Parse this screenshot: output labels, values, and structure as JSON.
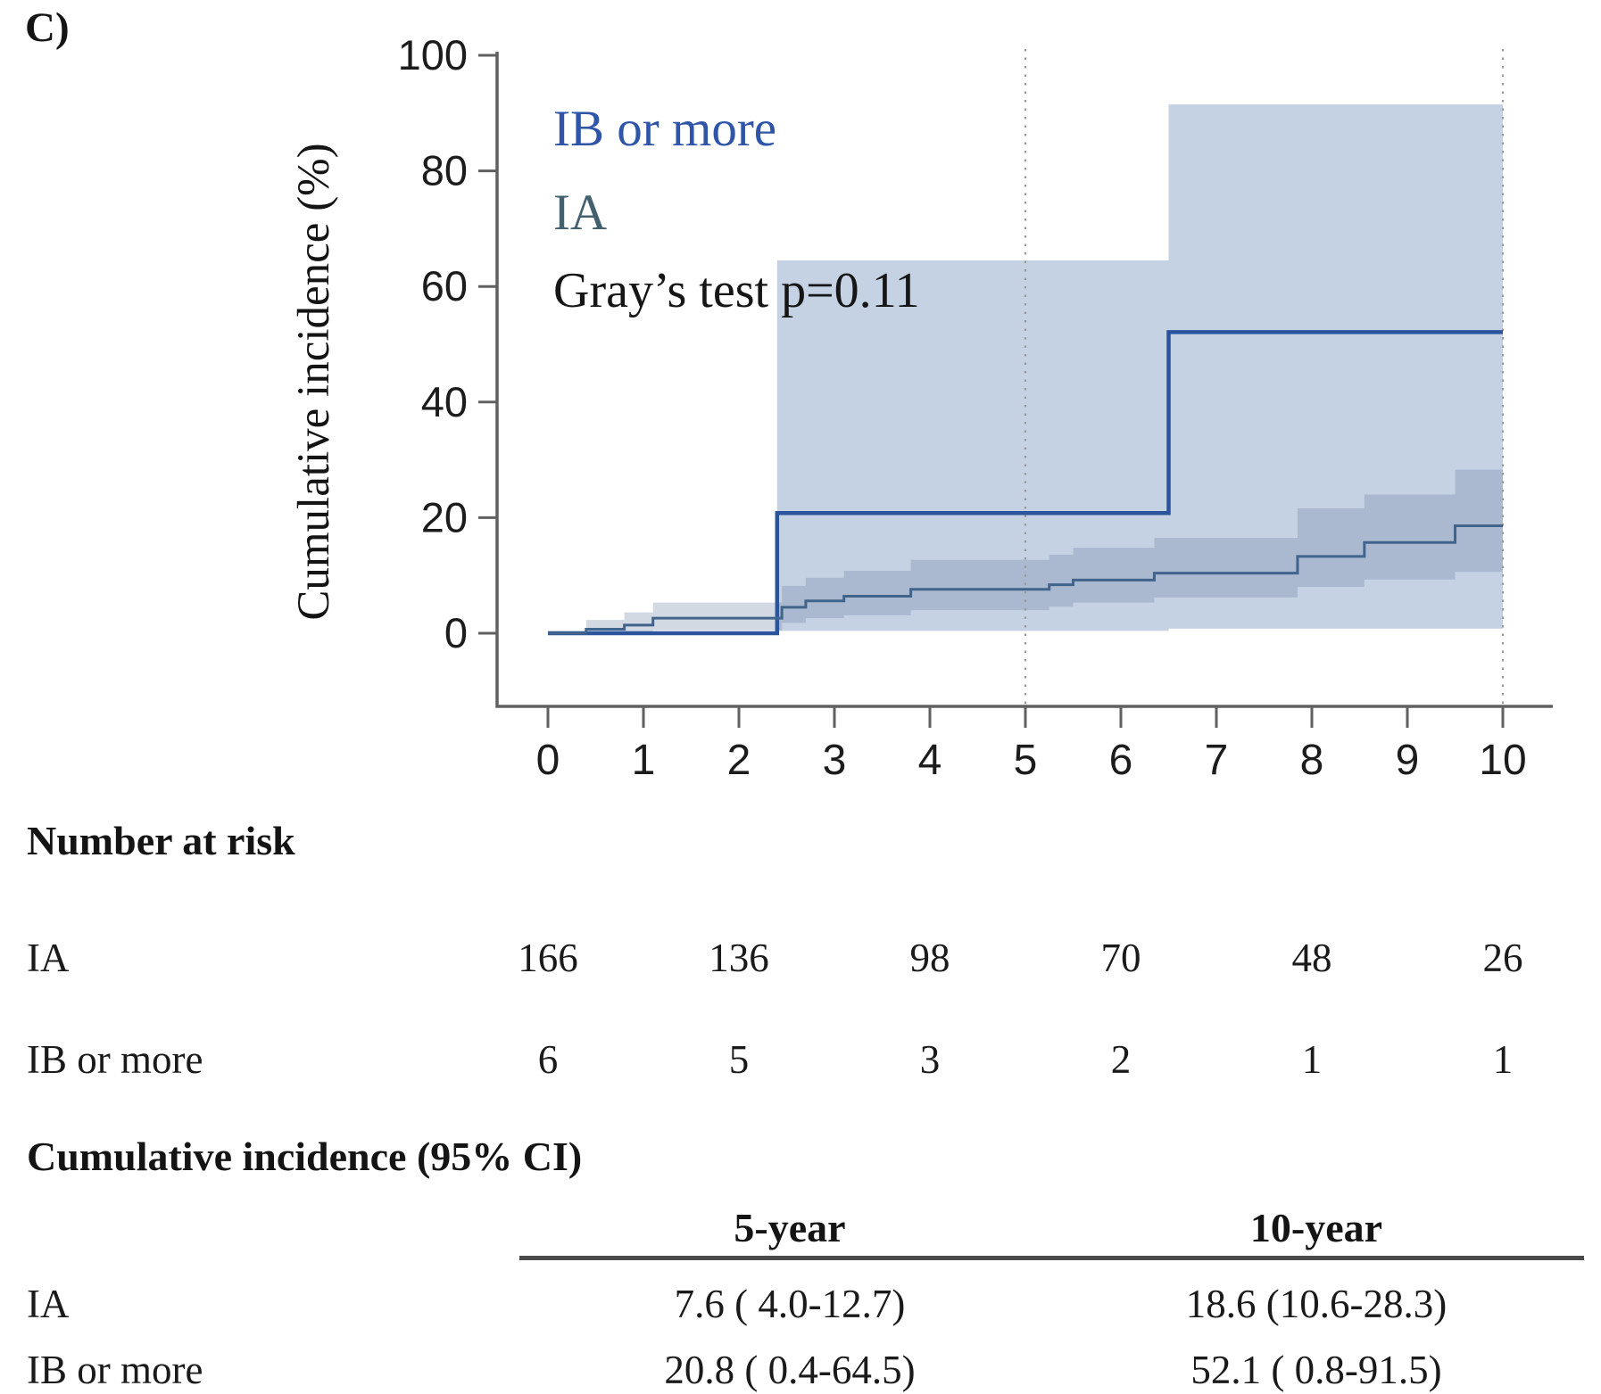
{
  "panel_label": "C)",
  "chart_data": {
    "type": "line",
    "subtype": "cumulative-incidence-step",
    "title": "",
    "xlabel": "",
    "ylabel": "Cumulative incidence (%)",
    "xlim": [
      0,
      10
    ],
    "ylim": [
      0,
      100
    ],
    "x_ticks": [
      0,
      1,
      2,
      3,
      4,
      5,
      6,
      7,
      8,
      9,
      10
    ],
    "y_ticks": [
      0,
      20,
      40,
      60,
      80,
      100
    ],
    "grid": false,
    "reference_lines_x": [
      5,
      10
    ],
    "annotation": "Gray’s test p=0.11",
    "legend_position": "top-left-inside",
    "series": [
      {
        "name": "IB or more",
        "line_color": "#2b549c",
        "line_width": 4.5,
        "band_color": "rgba(127,156,196,0.45)",
        "steps": [
          [
            0,
            0
          ],
          [
            2.4,
            20.8
          ],
          [
            6.5,
            52.1
          ]
        ],
        "end": 10,
        "ci_steps": [
          [
            2.4,
            0.4,
            64.5
          ],
          [
            6.5,
            0.8,
            91.5
          ]
        ],
        "ci_end": 10
      },
      {
        "name": "IA",
        "line_color": "#40648c",
        "line_width": 3,
        "band_color": "rgba(110,130,160,0.30)",
        "steps": [
          [
            0,
            0
          ],
          [
            0.4,
            0.7
          ],
          [
            0.8,
            1.4
          ],
          [
            1.1,
            2.6
          ],
          [
            2.45,
            4.5
          ],
          [
            2.7,
            5.6
          ],
          [
            3.1,
            6.4
          ],
          [
            3.8,
            7.6
          ],
          [
            5.25,
            8.4
          ],
          [
            5.5,
            9.2
          ],
          [
            6.35,
            10.4
          ],
          [
            7.85,
            13.3
          ],
          [
            8.55,
            15.7
          ],
          [
            9.5,
            18.6
          ]
        ],
        "end": 10,
        "ci_steps": [
          [
            0.4,
            0.1,
            2.3
          ],
          [
            0.8,
            0.2,
            3.6
          ],
          [
            1.1,
            0.5,
            5.3
          ],
          [
            2.45,
            1.8,
            8.2
          ],
          [
            2.7,
            2.6,
            9.6
          ],
          [
            3.1,
            3.1,
            10.8
          ],
          [
            3.8,
            4.0,
            12.7
          ],
          [
            5.25,
            4.6,
            13.6
          ],
          [
            5.5,
            5.3,
            14.8
          ],
          [
            6.35,
            6.2,
            16.5
          ],
          [
            7.85,
            8.0,
            21.6
          ],
          [
            8.55,
            9.3,
            24.0
          ],
          [
            9.5,
            10.6,
            28.3
          ]
        ],
        "ci_end": 10
      }
    ],
    "legend": [
      {
        "label": "IB or more",
        "color": "#2f55a8"
      },
      {
        "label": "IA",
        "color": "#42606e"
      }
    ],
    "axis_color": "#606060",
    "tick_label_color": "#1c1c1c",
    "reference_line_color": "#999999"
  },
  "risk_table": {
    "title": "Number at risk",
    "time_points": [
      0,
      2,
      4,
      6,
      8,
      10
    ],
    "rows": [
      {
        "label": "IA",
        "values": [
          "166",
          "136",
          "98",
          "70",
          "48",
          "26"
        ]
      },
      {
        "label": "IB or more",
        "values": [
          "6",
          "5",
          "3",
          "2",
          "1",
          "1"
        ]
      }
    ]
  },
  "ci_table": {
    "title": "Cumulative incidence (95% CI)",
    "columns": [
      "5-year",
      "10-year"
    ],
    "rows": [
      {
        "label": "IA",
        "values": [
          "7.6 ( 4.0-12.7)",
          "18.6 (10.6-28.3)"
        ]
      },
      {
        "label": "IB or more",
        "values": [
          "20.8 ( 0.4-64.5)",
          "52.1 ( 0.8-91.5)"
        ]
      }
    ]
  }
}
